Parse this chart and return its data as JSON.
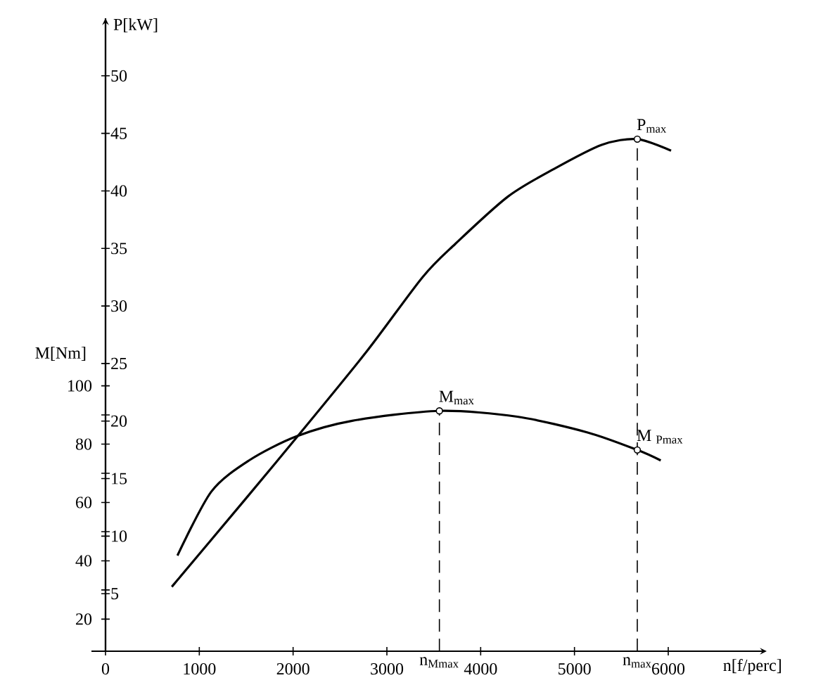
{
  "chart_data": {
    "type": "line",
    "xlabel": "n[f/perc]",
    "ylabel": "P[kW]",
    "y2label": "M[Nm]",
    "xlim": [
      -150,
      7050
    ],
    "xticks": [
      0,
      1000,
      2000,
      3000,
      4000,
      5000,
      6000
    ],
    "ylim": [
      0,
      55
    ],
    "yticks": [
      5,
      10,
      15,
      20,
      25,
      30,
      35,
      40,
      45,
      50
    ],
    "y2lim": [
      9,
      226
    ],
    "y2ticks": [
      20,
      {
        "value": 30,
        "label": null
      },
      40,
      {
        "value": 50,
        "label": null
      },
      60,
      {
        "value": 70,
        "label": null
      },
      80,
      {
        "value": 90,
        "label": null
      },
      100
    ],
    "series": [
      {
        "color": "#000000",
        "x": [
          707,
          1500,
          2030,
          2780,
          3380,
          3730,
          4290,
          4780,
          5290,
          5670,
          6030
        ],
        "values": [
          5.6,
          13.3,
          18.5,
          26.0,
          32.5,
          35.4,
          39.5,
          41.9,
          44.0,
          44.5,
          43.5
        ]
      },
      {
        "axis": "y2",
        "color": "#000000",
        "x": [
          767,
          1128,
          1530,
          2030,
          2630,
          3560,
          4390,
          5140,
          5670,
          5920
        ],
        "values": [
          41.8,
          63.7,
          74.4,
          82.6,
          88,
          91.4,
          89.4,
          84,
          78.0,
          74.4
        ]
      },
      {
        "axis": "y2",
        "line_style": "dashed",
        "name": "n$_{Mmax}$",
        "color": "#000000",
        "x": [
          3560,
          3560
        ],
        "values": [
          9,
          91.4
        ]
      },
      {
        "line_style": "dashed",
        "name": "n$_{max}$",
        "color": "#000000",
        "x": [
          5670,
          5670
        ],
        "values": [
          0,
          44.5
        ]
      },
      {
        "type": "scatter",
        "marker": "circle",
        "name": "P$_{max}$",
        "color": "#000000",
        "x": [
          5670
        ],
        "values": [
          44.5
        ]
      },
      {
        "type": "scatter",
        "axis": "y2",
        "marker": "circle",
        "name": "M$_{max}$",
        "color": "#000000",
        "x": [
          3560
        ],
        "values": [
          91.4
        ]
      },
      {
        "type": "scatter",
        "axis": "y2",
        "marker": "circle",
        "name": "M $_{Pmax}$",
        "color": "#000000",
        "x": [
          5670
        ],
        "values": [
          78.0
        ]
      }
    ]
  }
}
